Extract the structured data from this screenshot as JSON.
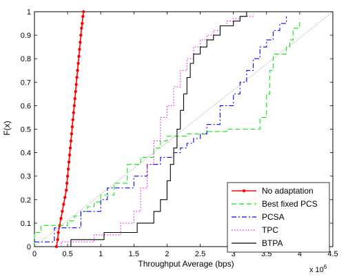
{
  "chart_data": {
    "type": "line",
    "xlabel": "Throughput Average (bps)",
    "ylabel": "F(x)",
    "x_multiplier_label": "x 10",
    "x_multiplier_exp": "6",
    "xlim": [
      0,
      4.5
    ],
    "ylim": [
      0,
      1
    ],
    "xticks": [
      "0",
      "0.5",
      "1",
      "1.5",
      "2",
      "2.5",
      "3",
      "3.5",
      "4",
      "4.5"
    ],
    "yticks": [
      "0",
      "0.1",
      "0.2",
      "0.3",
      "0.4",
      "0.5",
      "0.6",
      "0.7",
      "0.8",
      "0.9",
      "1"
    ],
    "grid": false,
    "legend_position": "bottom-right",
    "series": [
      {
        "name": "No adaptation",
        "color": "#ff0000",
        "dash": "solid",
        "marker": "dot",
        "x": [
          0.33,
          0.35,
          0.36,
          0.38,
          0.4,
          0.42,
          0.44,
          0.46,
          0.48,
          0.49,
          0.5,
          0.51,
          0.52,
          0.53,
          0.54,
          0.55,
          0.56,
          0.57,
          0.58,
          0.59,
          0.6,
          0.61,
          0.62,
          0.63,
          0.64,
          0.65,
          0.66,
          0.67,
          0.68,
          0.69,
          0.7,
          0.71,
          0.72,
          0.73,
          0.74
        ],
        "y": [
          0.0,
          0.03,
          0.06,
          0.09,
          0.12,
          0.15,
          0.18,
          0.21,
          0.24,
          0.27,
          0.3,
          0.33,
          0.36,
          0.39,
          0.42,
          0.45,
          0.48,
          0.51,
          0.54,
          0.57,
          0.6,
          0.63,
          0.66,
          0.69,
          0.72,
          0.75,
          0.78,
          0.81,
          0.84,
          0.87,
          0.9,
          0.93,
          0.95,
          0.98,
          1.0
        ]
      },
      {
        "name": "Best fixed PCS",
        "color": "#00ee00",
        "dash": "dashed",
        "x": [
          0.0,
          0.0,
          0.1,
          0.1,
          0.5,
          0.5,
          0.6,
          0.6,
          0.7,
          0.7,
          0.8,
          0.8,
          0.9,
          0.9,
          1.0,
          1.0,
          1.2,
          1.2,
          1.4,
          1.4,
          1.6,
          1.6,
          1.8,
          1.8,
          1.9,
          1.9,
          2.0,
          2.0,
          2.3,
          2.3,
          2.6,
          2.6,
          2.9,
          2.9,
          3.4,
          3.4,
          3.5,
          3.5,
          3.55,
          3.55,
          3.6,
          3.6,
          3.8,
          3.8,
          3.85,
          3.85,
          3.9,
          3.9,
          4.0,
          4.0
        ],
        "y": [
          0.0,
          0.06,
          0.06,
          0.09,
          0.09,
          0.11,
          0.11,
          0.13,
          0.13,
          0.15,
          0.15,
          0.17,
          0.17,
          0.19,
          0.19,
          0.22,
          0.22,
          0.27,
          0.27,
          0.35,
          0.35,
          0.38,
          0.38,
          0.42,
          0.42,
          0.45,
          0.45,
          0.47,
          0.47,
          0.48,
          0.48,
          0.49,
          0.49,
          0.5,
          0.5,
          0.55,
          0.55,
          0.65,
          0.65,
          0.75,
          0.75,
          0.82,
          0.82,
          0.85,
          0.85,
          0.88,
          0.88,
          0.93,
          0.93,
          0.97
        ]
      },
      {
        "name": "PCSA",
        "color": "#0000ff",
        "dash": "dashdot",
        "x": [
          0.0,
          0.3,
          0.3,
          0.7,
          0.7,
          1.0,
          1.0,
          1.1,
          1.1,
          1.5,
          1.5,
          1.7,
          1.7,
          1.9,
          1.9,
          2.1,
          2.1,
          2.2,
          2.2,
          2.3,
          2.3,
          2.4,
          2.4,
          2.5,
          2.5,
          2.6,
          2.6,
          2.8,
          2.8,
          3.0,
          3.0,
          3.1,
          3.1,
          3.2,
          3.2,
          3.3,
          3.3,
          3.4,
          3.4,
          3.5,
          3.5,
          3.6,
          3.6,
          3.7,
          3.7,
          3.8,
          3.8
        ],
        "y": [
          0.02,
          0.02,
          0.08,
          0.08,
          0.15,
          0.15,
          0.2,
          0.2,
          0.25,
          0.25,
          0.3,
          0.3,
          0.35,
          0.35,
          0.38,
          0.38,
          0.4,
          0.4,
          0.42,
          0.42,
          0.44,
          0.44,
          0.46,
          0.46,
          0.48,
          0.48,
          0.52,
          0.52,
          0.6,
          0.6,
          0.65,
          0.65,
          0.7,
          0.7,
          0.75,
          0.75,
          0.8,
          0.8,
          0.85,
          0.85,
          0.88,
          0.88,
          0.92,
          0.92,
          0.95,
          0.95,
          0.98
        ]
      },
      {
        "name": "TPC",
        "color": "#ff00ff",
        "dash": "dotted",
        "x": [
          0.4,
          0.4,
          0.9,
          0.9,
          1.3,
          1.3,
          1.5,
          1.5,
          1.6,
          1.6,
          1.7,
          1.7,
          1.8,
          1.8,
          1.9,
          1.9,
          2.0,
          2.0,
          2.1,
          2.1,
          2.2,
          2.2,
          2.3,
          2.3,
          2.4,
          2.4,
          2.5,
          2.5,
          2.6,
          2.6,
          2.7,
          2.7,
          2.8,
          2.8,
          2.9,
          2.9,
          3.0,
          3.0,
          3.1,
          3.1,
          3.3,
          3.3
        ],
        "y": [
          0.0,
          0.02,
          0.02,
          0.05,
          0.05,
          0.1,
          0.1,
          0.15,
          0.15,
          0.25,
          0.25,
          0.35,
          0.35,
          0.45,
          0.45,
          0.55,
          0.55,
          0.6,
          0.6,
          0.68,
          0.68,
          0.75,
          0.75,
          0.8,
          0.8,
          0.85,
          0.85,
          0.88,
          0.88,
          0.9,
          0.9,
          0.92,
          0.92,
          0.94,
          0.94,
          0.96,
          0.96,
          0.97,
          0.97,
          0.98,
          0.98,
          0.99
        ]
      },
      {
        "name": "BTPA",
        "color": "#000000",
        "dash": "solid",
        "x": [
          0.55,
          0.55,
          1.05,
          1.05,
          1.55,
          1.55,
          1.8,
          1.8,
          1.9,
          1.9,
          2.0,
          2.0,
          2.05,
          2.05,
          2.1,
          2.1,
          2.15,
          2.15,
          2.2,
          2.2,
          2.25,
          2.25,
          2.3,
          2.3,
          2.35,
          2.35,
          2.4,
          2.4,
          2.5,
          2.5,
          2.6,
          2.6,
          2.7,
          2.7,
          2.8,
          2.8,
          3.0,
          3.0,
          3.1,
          3.1,
          3.2,
          3.2
        ],
        "y": [
          0.0,
          0.03,
          0.03,
          0.06,
          0.06,
          0.1,
          0.1,
          0.15,
          0.15,
          0.2,
          0.2,
          0.28,
          0.28,
          0.35,
          0.35,
          0.42,
          0.42,
          0.5,
          0.5,
          0.58,
          0.58,
          0.65,
          0.65,
          0.72,
          0.72,
          0.78,
          0.78,
          0.82,
          0.82,
          0.85,
          0.85,
          0.88,
          0.88,
          0.9,
          0.9,
          0.94,
          0.94,
          0.96,
          0.96,
          0.98,
          0.98,
          1.0
        ]
      }
    ],
    "reference_line": {
      "color": "#999999",
      "dash": "dotted",
      "x": [
        0,
        4.5
      ],
      "y": [
        0,
        1
      ]
    }
  }
}
